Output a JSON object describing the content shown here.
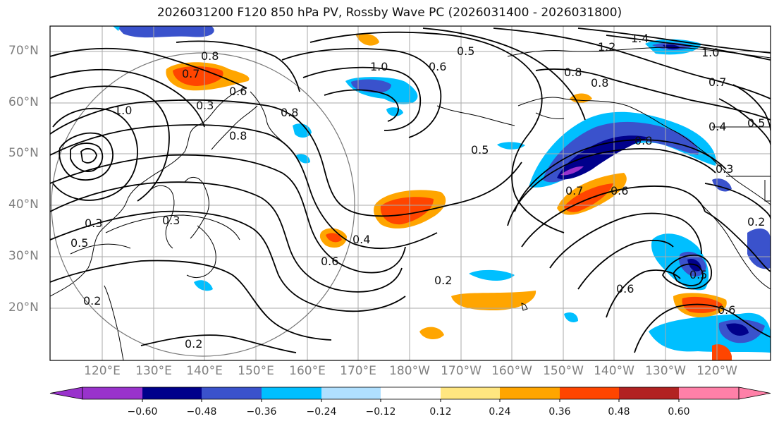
{
  "title": "2026031200 F120 850 hPa PV, Rossby Wave PC (2026031400 - 2026031800)",
  "lat_labels": [
    "70°N",
    "60°N",
    "50°N",
    "40°N",
    "30°N",
    "20°N"
  ],
  "lon_labels": [
    "120°E",
    "130°E",
    "140°E",
    "150°E",
    "160°E",
    "170°E",
    "180°W",
    "170°W",
    "160°W",
    "150°W",
    "140°W",
    "130°W",
    "120°W"
  ],
  "colorbar": {
    "ticks": [
      "−0.60",
      "−0.48",
      "−0.36",
      "−0.24",
      "−0.12",
      "0.12",
      "0.24",
      "0.36",
      "0.48",
      "0.60"
    ],
    "colors": [
      "#9932cc",
      "#00008b",
      "#3a52cc",
      "#00bfff",
      "#b0e0ff",
      "#ffffff",
      "#ffe680",
      "#ffa500",
      "#ff4500",
      "#b22222",
      "#ff80a8"
    ]
  },
  "contour_labels": [
    "0.7",
    "0.8",
    "0.6",
    "0.5",
    "0.3",
    "1.0",
    "0.8",
    "0.6",
    "0.5",
    "1.2",
    "1.4",
    "1.0",
    "0.8",
    "0.7",
    "0.8",
    "0.6",
    "0.7",
    "0.4",
    "0.3",
    "0.4",
    "0.6",
    "0.2",
    "0.2",
    "0.3",
    "0.5",
    "0.2",
    "0.3",
    "0.6",
    "0.5",
    "0.6",
    "0.8",
    "1.0",
    "0.8",
    "0.5",
    "0.2"
  ],
  "anomaly_colors": {
    "neg_deep": "#00008b",
    "neg_strong": "#3a52cc",
    "neg_mid": "#00bfff",
    "neg_weak": "#b0e0ff",
    "pos_weak": "#ffe680",
    "pos_mid": "#ffa500",
    "pos_strong": "#ff4500",
    "pos_deep": "#b22222",
    "neg_extreme": "#9932cc"
  }
}
